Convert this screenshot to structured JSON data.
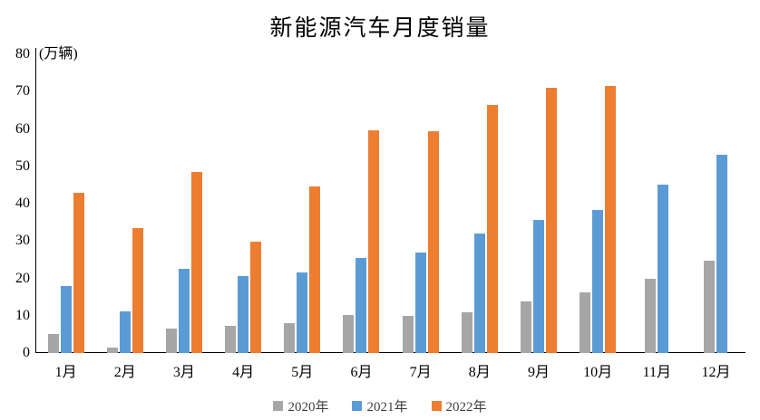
{
  "page": {
    "background_color": "#ffffff",
    "text_color": "#000000",
    "axis_color": "#000000"
  },
  "chart_data": {
    "type": "bar",
    "title": "新能源汽车月度销量",
    "unit_label": "(万辆)",
    "categories": [
      "1月",
      "2月",
      "3月",
      "4月",
      "5月",
      "6月",
      "7月",
      "8月",
      "9月",
      "10月",
      "11月",
      "12月"
    ],
    "series": [
      {
        "name": "2020年",
        "color": "#A6A6A6",
        "values": [
          5,
          1.5,
          6.5,
          7.2,
          8.1,
          10.3,
          10,
          11,
          13.8,
          16.2,
          20,
          24.7
        ]
      },
      {
        "name": "2021年",
        "color": "#5B9BD5",
        "values": [
          17.9,
          11.1,
          22.6,
          20.6,
          21.6,
          25.5,
          27,
          31.9,
          35.6,
          38.2,
          45,
          53
        ]
      },
      {
        "name": "2022年",
        "color": "#ED7D31",
        "values": [
          43,
          33.4,
          48.4,
          29.8,
          44.7,
          59.6,
          59.3,
          66.5,
          71,
          71.5,
          null,
          null
        ]
      }
    ],
    "ylim": [
      0,
      80
    ],
    "yticks": [
      0,
      10,
      20,
      30,
      40,
      50,
      60,
      70,
      80
    ],
    "grid": false,
    "legend_position": "bottom"
  }
}
